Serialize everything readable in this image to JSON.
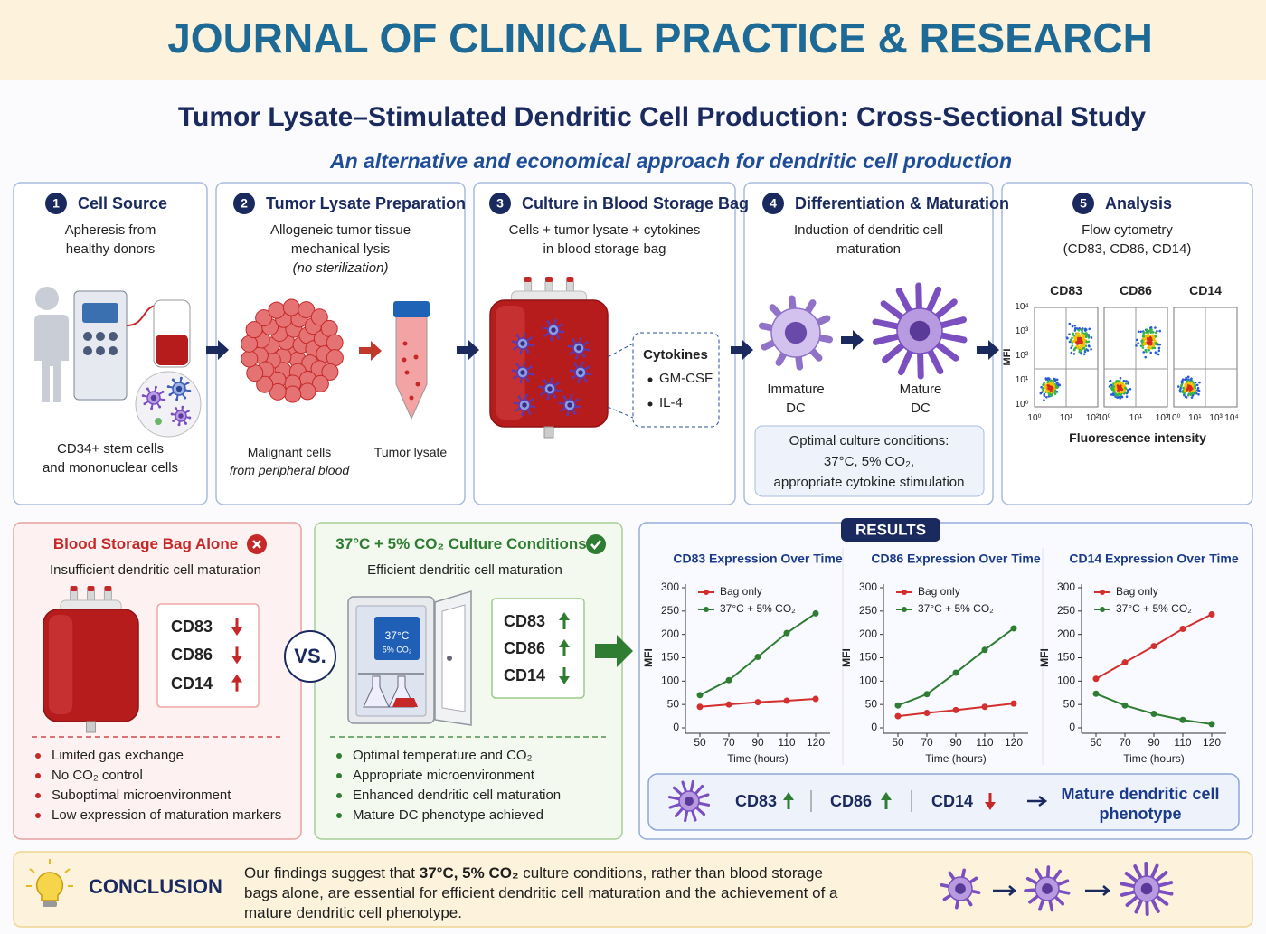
{
  "header": {
    "journal": "JOURNAL OF CLINICAL PRACTICE & RESEARCH",
    "title": "Tumor Lysate–Stimulated Dendritic Cell Production: Cross-Sectional Study",
    "subtitle": "An alternative and economical approach for dendritic cell production"
  },
  "steps": [
    {
      "number": 1,
      "title": "Cell Source",
      "description": [
        "Apheresis from",
        "healthy donors"
      ],
      "caption": [
        "CD34+ stem cells",
        "and mononuclear cells"
      ]
    },
    {
      "number": 2,
      "title": "Tumor Lysate Preparation",
      "description": [
        "Allogeneic tumor tissue",
        "mechanical lysis",
        "(no sterilization)"
      ],
      "labels": [
        {
          "lines": [
            "Malignant cells",
            "from peripheral blood"
          ]
        },
        {
          "lines": [
            "Tumor lysate"
          ]
        }
      ]
    },
    {
      "number": 3,
      "title": "Culture in Blood Storage Bag",
      "description": [
        "Cells + tumor lysate + cytokines",
        "in blood storage bag"
      ],
      "callout": {
        "title": "Cytokines",
        "items": [
          "GM-CSF",
          "IL-4"
        ]
      }
    },
    {
      "number": 4,
      "title": "Differentiation & Maturation",
      "description": [
        "Induction of dendritic cell",
        "maturation"
      ],
      "labels": [
        {
          "lines": [
            "Immature",
            "DC"
          ]
        },
        {
          "lines": [
            "Mature",
            "DC"
          ]
        }
      ],
      "conditions": [
        "Optimal culture conditions:",
        "37°C, 5% CO₂,",
        "appropriate cytokine stimulation"
      ]
    },
    {
      "number": 5,
      "title": "Analysis",
      "description": [
        "Flow cytometry",
        "(CD83, CD86, CD14)"
      ],
      "flow": {
        "plots": [
          "CD83",
          "CD86",
          "CD14"
        ],
        "y_label": "MFI",
        "y_ticks": [
          "10⁴",
          "10³",
          "10²",
          "10¹",
          "10⁰"
        ],
        "x_ticks": [
          [
            "10⁰",
            "10¹",
            "10²"
          ],
          [
            "10⁰",
            "10¹",
            "10³"
          ],
          [
            "10⁰",
            "10¹",
            "10³",
            "10⁴"
          ]
        ],
        "x_label": "Fluorescence intensity"
      }
    }
  ],
  "comparison": {
    "bag": {
      "title": "Blood Storage Bag Alone",
      "summary": "Insufficient dendritic cell maturation",
      "markers": [
        {
          "label": "CD83",
          "trend": "down"
        },
        {
          "label": "CD86",
          "trend": "down"
        },
        {
          "label": "CD14",
          "trend": "up"
        }
      ],
      "points": [
        "Limited gas exchange",
        "No CO₂ control",
        "Suboptimal microenvironment",
        "Low expression of maturation markers"
      ]
    },
    "vs": "VS.",
    "incubator": {
      "title": "37°C + 5% CO₂ Culture Conditions",
      "summary": "Efficient dendritic cell maturation",
      "display": [
        "37°C",
        "5% CO₂"
      ],
      "markers": [
        {
          "label": "CD83",
          "trend": "up"
        },
        {
          "label": "CD86",
          "trend": "up"
        },
        {
          "label": "CD14",
          "trend": "down"
        }
      ],
      "points": [
        "Optimal temperature and CO₂",
        "Appropriate microenvironment",
        "Enhanced dendritic cell maturation",
        "Mature DC phenotype achieved"
      ]
    }
  },
  "results": {
    "title": "RESULTS",
    "summary": {
      "markers": [
        {
          "label": "CD83",
          "trend": "up"
        },
        {
          "label": "CD86",
          "trend": "up"
        },
        {
          "label": "CD14",
          "trend": "down"
        }
      ],
      "outcome": [
        "Mature dendritic cell",
        "phenotype"
      ]
    }
  },
  "chart_data": [
    {
      "type": "line",
      "title": "CD83 Expression Over Time",
      "categories": [
        50,
        70,
        90,
        110,
        120
      ],
      "x_label": "Time (hours)",
      "y_label": "MFI",
      "ylim": [
        0,
        300
      ],
      "yticks": [
        0,
        50,
        100,
        150,
        200,
        250,
        300
      ],
      "legend": "top-left",
      "series": [
        {
          "name": "Bag only",
          "color": "#d32f2f",
          "values": [
            45,
            50,
            55,
            58,
            62
          ]
        },
        {
          "name": "37°C + 5% CO₂",
          "color": "#2e7d32",
          "values": [
            70,
            102,
            152,
            203,
            245
          ]
        }
      ]
    },
    {
      "type": "line",
      "title": "CD86 Expression Over Time",
      "categories": [
        50,
        70,
        90,
        110,
        120
      ],
      "x_label": "Time (hours)",
      "y_label": "MFI",
      "ylim": [
        0,
        300
      ],
      "yticks": [
        0,
        50,
        100,
        150,
        200,
        250,
        300
      ],
      "legend": "top-left",
      "series": [
        {
          "name": "Bag only",
          "color": "#d32f2f",
          "values": [
            25,
            32,
            38,
            45,
            52
          ]
        },
        {
          "name": "37°C + 5% CO₂",
          "color": "#2e7d32",
          "values": [
            48,
            72,
            118,
            167,
            213
          ]
        }
      ]
    },
    {
      "type": "line",
      "title": "CD14 Expression Over Time",
      "categories": [
        50,
        70,
        90,
        110,
        120
      ],
      "x_label": "Time (hours)",
      "y_label": "MFI",
      "ylim": [
        0,
        300
      ],
      "yticks": [
        0,
        50,
        100,
        150,
        200,
        250,
        300
      ],
      "legend": "top-left",
      "series": [
        {
          "name": "Bag only",
          "color": "#d32f2f",
          "values": [
            105,
            140,
            175,
            212,
            243
          ]
        },
        {
          "name": "37°C + 5% CO₂",
          "color": "#2e7d32",
          "values": [
            73,
            48,
            30,
            17,
            8
          ]
        }
      ]
    }
  ],
  "conclusion": {
    "title": "CONCLUSION",
    "text": [
      "Our findings suggest that ",
      "37°C, 5% CO₂",
      " culture conditions, rather than blood storage bags alone, are essential for efficient dendritic cell maturation and the achievement of a mature dendritic cell phenotype."
    ]
  }
}
